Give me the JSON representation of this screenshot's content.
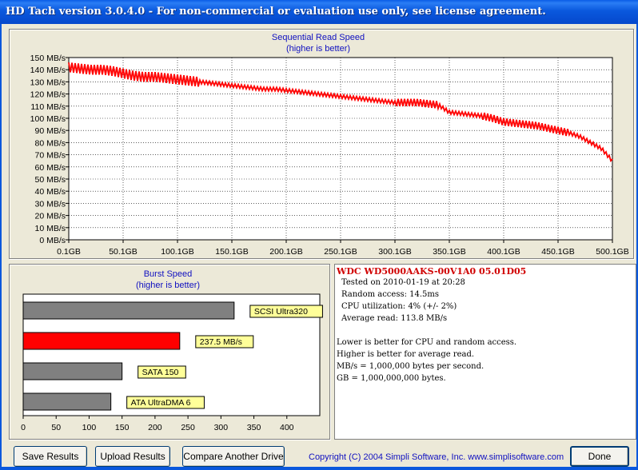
{
  "window": {
    "title": "HD Tach version 3.0.4.0  - For non-commercial or evaluation use only, see license agreement."
  },
  "colors": {
    "accent": "#ff0000",
    "bar_gray": "#808080",
    "label_bg": "#ffff99",
    "title_blue": "#1010c0"
  },
  "chart_data": [
    {
      "type": "line",
      "title": "Sequential Read Speed",
      "subtitle": "(higher is better)",
      "ylim": [
        0,
        150
      ],
      "y_ticks": [
        "0 MB/s",
        "10 MB/s",
        "20 MB/s",
        "30 MB/s",
        "40 MB/s",
        "50 MB/s",
        "60 MB/s",
        "70 MB/s",
        "80 MB/s",
        "90 MB/s",
        "100 MB/s",
        "110 MB/s",
        "120 MB/s",
        "130 MB/s",
        "140 MB/s",
        "150 MB/s"
      ],
      "x_ticks": [
        "0.1GB",
        "50.1GB",
        "100.1GB",
        "150.1GB",
        "200.1GB",
        "250.1GB",
        "300.1GB",
        "350.1GB",
        "400.1GB",
        "450.1GB",
        "500.1GB"
      ],
      "xlim": [
        0.1,
        500.1
      ],
      "grid": true,
      "series": [
        {
          "color": "#ff0000",
          "x": [
            0,
            10,
            20,
            30,
            40,
            50,
            60,
            70,
            80,
            90,
            100,
            110,
            120,
            130,
            140,
            150,
            160,
            170,
            180,
            190,
            200,
            210,
            220,
            230,
            240,
            250,
            260,
            270,
            280,
            290,
            300,
            310,
            320,
            330,
            340,
            350,
            360,
            370,
            380,
            390,
            400,
            410,
            420,
            430,
            440,
            450,
            460,
            470,
            480,
            490,
            500
          ],
          "y": [
            142,
            141,
            140,
            140,
            139,
            137,
            135,
            134,
            134,
            133,
            132,
            131,
            130,
            129,
            128,
            127,
            126,
            125,
            124,
            124,
            123,
            122,
            121,
            120,
            119,
            118,
            117,
            116,
            115,
            114,
            113,
            113,
            113,
            112,
            111,
            105,
            104,
            103,
            102,
            100,
            97,
            96,
            95,
            94,
            92,
            90,
            88,
            85,
            80,
            75,
            65
          ]
        }
      ]
    },
    {
      "type": "bar",
      "title": "Burst Speed",
      "subtitle": "(higher is better)",
      "xlim": [
        0,
        450
      ],
      "x_ticks": [
        "0",
        "50",
        "100",
        "150",
        "200",
        "250",
        "300",
        "350",
        "400"
      ],
      "categories": [
        "SCSI Ultra320",
        "237.5 MB/s",
        "SATA 150",
        "ATA UltraDMA 6"
      ],
      "values": [
        320,
        237.5,
        150,
        133
      ],
      "bar_colors": [
        "#808080",
        "#ff0000",
        "#808080",
        "#808080"
      ]
    }
  ],
  "info": {
    "drive": "WDC WD5000AAKS-00V1A0 05.01D05",
    "lines": [
      "Tested on 2010-01-19 at 20:28",
      "Random access: 14.5ms",
      "CPU utilization: 4% (+/- 2%)",
      "Average read: 113.8 MB/s"
    ],
    "notes": [
      "Lower is better for CPU and random access.",
      "Higher is better for average read.",
      "MB/s = 1,000,000 bytes per second.",
      "GB = 1,000,000,000 bytes."
    ]
  },
  "buttons": {
    "save": "Save Results",
    "upload": "Upload Results",
    "compare": "Compare Another Drive",
    "done": "Done"
  },
  "copyright": "Copyright (C) 2004 Simpli Software, Inc. www.simplisoftware.com"
}
